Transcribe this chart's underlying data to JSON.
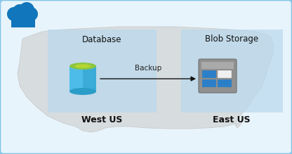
{
  "bg_outer": "#cce5f5",
  "bg_inner": "#e8f4fb",
  "map_color": "#cccccc",
  "map_edge": "#bbbbbb",
  "region_color": "#b8d8ed",
  "region_alpha": 0.7,
  "cloud_color": "#1176bc",
  "arrow_color": "#111111",
  "label_backup": "Backup",
  "label_west": "West US",
  "label_east": "East US",
  "label_db": "Database",
  "label_blob": "Blob Storage",
  "title_fontsize": 8.5,
  "label_fontsize": 7.5,
  "region_label_fontsize": 9,
  "frame_edge": "#7fc4e8",
  "db_body_color": "#4dbce9",
  "db_side_color": "#2a9cc8",
  "db_top_color": "#8dc63f",
  "db_top_inner": "#b5d733",
  "blob_bg": "#8a8a8a",
  "blob_bar": "#aaaaaa",
  "blob_tile_blue": "#2a7fc8",
  "blob_tile_white": "#f0f0f0"
}
